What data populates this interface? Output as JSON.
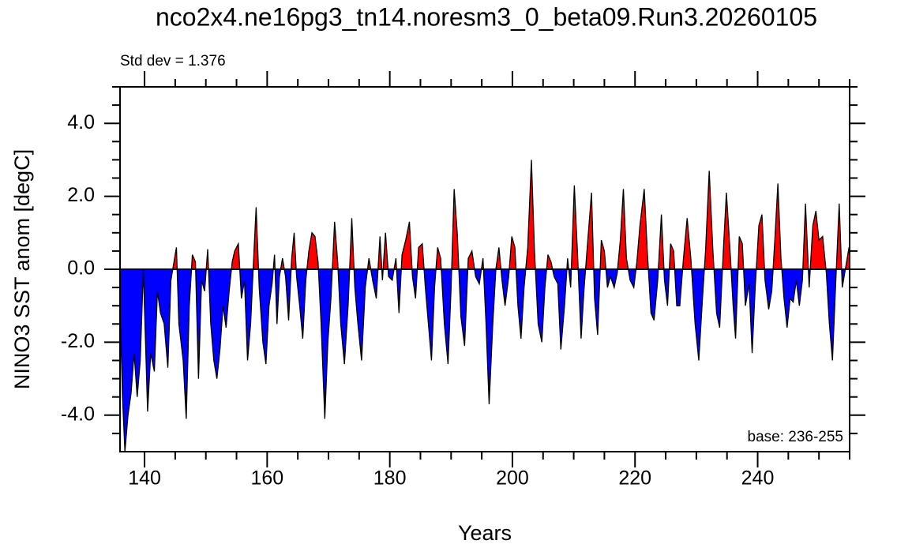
{
  "chart_data": {
    "type": "fillarea",
    "title": "nco2x4.ne16pg3_tn14.noresm3_0_beta09.Run3.20260105",
    "annotations": [
      "Std dev = 1.376",
      "base: 236-255"
    ],
    "xlabel": "Years",
    "ylabel": "NINO3 SST anom [degC]",
    "xlim": [
      136,
      255
    ],
    "ylim": [
      -5,
      5
    ],
    "xticks": [
      140,
      160,
      180,
      200,
      220,
      240
    ],
    "xminorticks": [
      145,
      150,
      155,
      165,
      170,
      175,
      185,
      190,
      195,
      205,
      210,
      215,
      225,
      230,
      235,
      245,
      250,
      255
    ],
    "yticks": [
      {
        "value": -4,
        "label": "-4.0"
      },
      {
        "value": -2,
        "label": "-2.0"
      },
      {
        "value": 0,
        "label": "0.0"
      },
      {
        "value": 2,
        "label": "2.0"
      },
      {
        "value": 4,
        "label": "4.0"
      }
    ],
    "yminorticks": [
      -4.5,
      -3.5,
      -3,
      -2.5,
      -1.5,
      -1,
      -0.5,
      0.5,
      1,
      1.5,
      2.5,
      3,
      3.5,
      4.5,
      5
    ],
    "reference_line": 0,
    "positive_color": "#ff0000",
    "negative_color": "#0000ff",
    "line_color": "#000000",
    "x": [
      136.0,
      136.4,
      136.8,
      137.3,
      137.8,
      138.3,
      138.8,
      139.3,
      139.8,
      140.5,
      141.0,
      141.6,
      142.1,
      142.6,
      143.2,
      143.8,
      144.3,
      144.8,
      145.2,
      145.6,
      146.3,
      146.8,
      147.3,
      147.8,
      148.3,
      148.8,
      149.3,
      149.8,
      150.3,
      150.8,
      151.3,
      151.8,
      152.3,
      152.8,
      153.3,
      153.8,
      154.3,
      154.7,
      155.3,
      155.8,
      156.3,
      156.8,
      157.3,
      157.8,
      158.2,
      158.7,
      159.3,
      159.8,
      160.3,
      160.8,
      161.2,
      161.6,
      162.0,
      162.5,
      163.0,
      163.5,
      164.0,
      164.4,
      164.8,
      165.3,
      165.8,
      166.3,
      166.8,
      167.3,
      167.8,
      168.3,
      168.8,
      169.4,
      169.9,
      170.4,
      171.0,
      171.5,
      172.0,
      172.6,
      173.2,
      173.8,
      174.3,
      174.8,
      175.4,
      176.0,
      176.6,
      177.2,
      177.8,
      178.4,
      178.8,
      179.3,
      179.8,
      180.4,
      181.0,
      181.5,
      182.0,
      182.6,
      183.2,
      183.7,
      184.2,
      184.7,
      185.3,
      185.8,
      186.3,
      186.8,
      187.3,
      187.8,
      188.3,
      188.9,
      189.5,
      190.0,
      190.5,
      191.0,
      191.6,
      192.2,
      192.8,
      193.4,
      194.0,
      194.6,
      195.2,
      195.7,
      196.2,
      196.8,
      197.3,
      197.8,
      198.3,
      198.8,
      199.4,
      199.9,
      200.4,
      200.9,
      201.4,
      201.9,
      202.5,
      203.1,
      203.6,
      204.2,
      204.8,
      205.3,
      205.8,
      206.3,
      206.8,
      207.4,
      207.9,
      208.5,
      209.0,
      209.5,
      210.1,
      210.6,
      211.2,
      211.7,
      212.3,
      212.9,
      213.4,
      213.9,
      214.5,
      215.0,
      215.5,
      216.0,
      216.6,
      217.1,
      217.6,
      218.1,
      218.6,
      219.2,
      219.8,
      220.3,
      220.8,
      221.5,
      222.0,
      222.6,
      223.1,
      223.7,
      224.3,
      224.8,
      225.3,
      225.8,
      226.3,
      226.8,
      227.3,
      227.9,
      228.5,
      229.1,
      229.8,
      230.4,
      231.0,
      231.5,
      232.1,
      232.7,
      233.3,
      233.8,
      234.4,
      234.9,
      235.5,
      236.0,
      236.4,
      237.0,
      237.5,
      238.0,
      238.6,
      239.1,
      239.6,
      240.2,
      240.7,
      241.2,
      241.8,
      242.3,
      242.8,
      243.3,
      243.8,
      244.3,
      244.8,
      245.3,
      245.8,
      246.3,
      246.8,
      247.3,
      247.8,
      248.4,
      249.0,
      249.5,
      250.0,
      250.6,
      251.2,
      251.7,
      252.2,
      252.7,
      253.3,
      253.8,
      254.3,
      254.9
    ],
    "values": [
      -1.0,
      -3.5,
      -5.0,
      -4.0,
      -3.4,
      -2.3,
      -3.5,
      -2.5,
      0.0,
      -3.9,
      -2.3,
      -2.8,
      -0.6,
      -1.2,
      -1.5,
      -2.7,
      -0.3,
      0.2,
      0.6,
      -1.5,
      -2.5,
      -4.1,
      -1.0,
      0.4,
      0.2,
      -3.0,
      -0.3,
      -0.6,
      0.55,
      -1.5,
      -2.5,
      -3.0,
      -2.2,
      -1.0,
      -1.6,
      -0.6,
      0.2,
      0.5,
      0.7,
      -0.8,
      -0.3,
      -2.5,
      -1.5,
      0.3,
      1.7,
      -0.5,
      -2.0,
      -2.6,
      -1.0,
      -0.4,
      0.4,
      -1.5,
      -0.2,
      0.3,
      -0.2,
      -1.4,
      0.3,
      1.0,
      -0.2,
      -1.0,
      -1.9,
      -0.3,
      0.5,
      1.0,
      0.9,
      0.2,
      -1.5,
      -4.1,
      -2.0,
      -0.8,
      1.3,
      0.2,
      -1.5,
      -2.6,
      -1.0,
      1.4,
      -0.5,
      -1.5,
      -2.5,
      -0.5,
      0.3,
      -0.3,
      -0.8,
      0.9,
      -0.3,
      1.0,
      -0.2,
      -0.3,
      0.3,
      -1.2,
      0.4,
      0.8,
      1.3,
      -0.2,
      -0.8,
      0.6,
      0.7,
      -0.5,
      -1.5,
      -2.5,
      -0.5,
      0.6,
      0.3,
      -1.5,
      -2.6,
      -0.5,
      2.2,
      1.0,
      -1.3,
      -2.1,
      0.3,
      0.5,
      -0.2,
      -0.4,
      0.3,
      -1.5,
      -3.7,
      -1.5,
      0.0,
      0.6,
      -0.3,
      -1.0,
      -0.2,
      0.9,
      0.6,
      -1.0,
      -1.9,
      -0.5,
      0.6,
      3.0,
      0.5,
      -1.5,
      -2.0,
      -0.5,
      0.4,
      0.2,
      -0.2,
      -0.4,
      -2.2,
      -1.0,
      0.3,
      -0.5,
      2.3,
      0.5,
      -1.9,
      -0.5,
      0.8,
      2.1,
      -0.8,
      -1.8,
      0.8,
      0.5,
      -0.5,
      -0.2,
      -0.5,
      -0.1,
      0.8,
      2.2,
      0.3,
      -0.3,
      -0.5,
      0.2,
      1.2,
      2.2,
      0.5,
      -1.2,
      -1.4,
      -0.3,
      1.5,
      -0.3,
      -1.0,
      0.7,
      0.5,
      -1.0,
      -1.0,
      0.3,
      1.4,
      0.3,
      -1.5,
      -2.5,
      -0.8,
      0.5,
      2.7,
      0.5,
      -1.2,
      -1.6,
      0.5,
      2.1,
      0.5,
      -1.0,
      -1.9,
      0.9,
      0.7,
      -1.0,
      -0.4,
      -2.3,
      -0.5,
      1.2,
      1.5,
      -0.3,
      -1.1,
      -0.6,
      0.8,
      2.35,
      0.3,
      -0.8,
      -1.6,
      -0.8,
      -0.9,
      -0.3,
      -1.0,
      -0.3,
      1.8,
      -0.5,
      1.2,
      1.6,
      0.8,
      0.9,
      -0.1,
      -1.5,
      -2.5,
      -0.5,
      1.8,
      -0.5,
      0.0,
      0.6
    ]
  }
}
